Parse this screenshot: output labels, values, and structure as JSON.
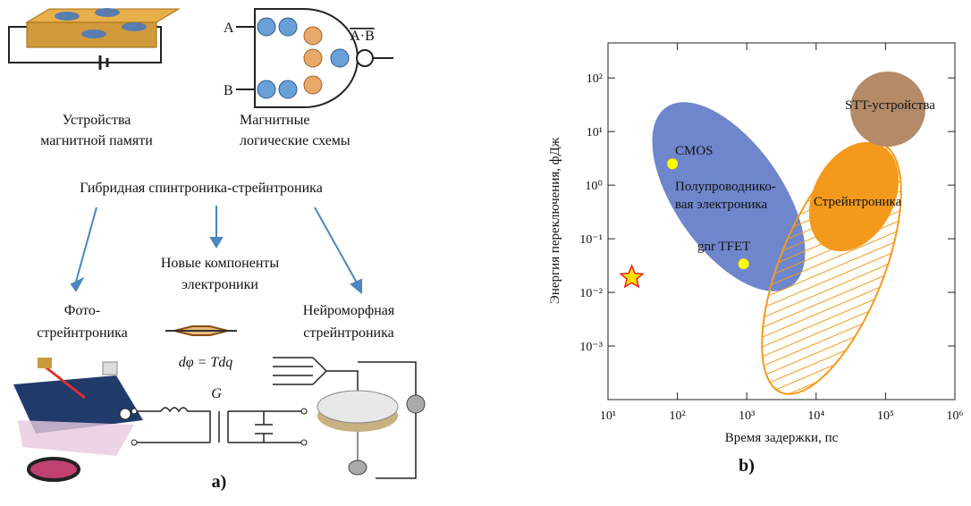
{
  "panel_a": {
    "memory_label": [
      "Устройства",
      "магнитной памяти"
    ],
    "logic_label": [
      "Магнитные",
      "логические схемы"
    ],
    "input_a": "A",
    "input_b": "B",
    "output": "A·B",
    "hybrid_label": "Гибридная спинтроника-стрейнтроника",
    "components_label": [
      "Новые компоненты",
      "электроники"
    ],
    "photo_label": [
      "Фото-",
      "стрейнтроника"
    ],
    "formula": "dφ = Tdq",
    "neuro_label": [
      "Нейроморфная",
      "стрейнтроника"
    ],
    "g_label": "G",
    "panel_label": "a)"
  },
  "chart_data": {
    "type": "scatter",
    "x_label": "Время задержки, пс",
    "y_label": "Энергия переключения, фДж",
    "log_x": true,
    "log_y": true,
    "xlim": [
      10,
      1000000
    ],
    "xticks": [
      {
        "value": 10,
        "label": "10¹"
      },
      {
        "value": 100,
        "label": "10²"
      },
      {
        "value": 1000,
        "label": "10³"
      },
      {
        "value": 10000,
        "label": "10⁴"
      },
      {
        "value": 100000,
        "label": "10⁵"
      },
      {
        "value": 1000000,
        "label": "10⁶"
      }
    ],
    "ylim": [
      0.0001,
      450
    ],
    "yticks": [
      {
        "value": 0.001,
        "label": "10⁻³"
      },
      {
        "value": 0.01,
        "label": "10⁻²"
      },
      {
        "value": 0.1,
        "label": "10⁻¹"
      },
      {
        "value": 1,
        "label": "10⁰"
      },
      {
        "value": 10,
        "label": "10¹"
      },
      {
        "value": 100,
        "label": "10²"
      }
    ],
    "points": [
      {
        "label": "CMOS",
        "x": 85,
        "y": 2.5,
        "color": "#ffff00",
        "marker": "circle"
      },
      {
        "label": "gnr TFET",
        "x": 900,
        "y": 0.034,
        "color": "#ffff00",
        "marker": "circle"
      },
      {
        "x": 22,
        "y": 0.019,
        "color": "#ffe000",
        "marker": "star"
      }
    ],
    "regions": [
      {
        "label": [
          "Полупроводнико-",
          "вая электроника"
        ],
        "color": "#6f86cc"
      },
      {
        "label": [
          "Стрейнтроника"
        ],
        "color": "#f39a1c"
      },
      {
        "label": [
          "STT-устройства"
        ],
        "color": "#b48a68"
      }
    ],
    "panel_label": "b)"
  }
}
